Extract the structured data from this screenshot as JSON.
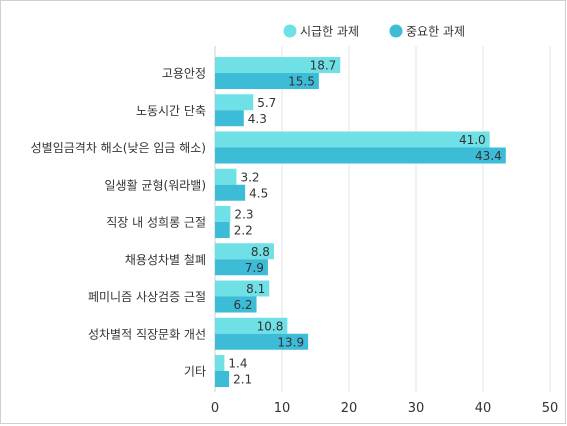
{
  "chart_data": {
    "type": "bar",
    "orientation": "horizontal",
    "categories": [
      "고용안정",
      "노동시간 단축",
      "성별임금격차 해소(낮은 임금 해소)",
      "일생활 균형(워라밸)",
      "직장 내 성희롱 근절",
      "채용성차별 철폐",
      "페미니즘 사상검증 근절",
      "성차별적 직장문화 개선",
      "기타"
    ],
    "series": [
      {
        "name": "시급한 과제",
        "color": "#6fe0e6",
        "values": [
          18.7,
          5.7,
          41.0,
          3.2,
          2.3,
          8.8,
          8.1,
          10.8,
          1.4
        ]
      },
      {
        "name": "중요한 과제",
        "color": "#3dbcd8",
        "values": [
          15.5,
          4.3,
          43.4,
          4.5,
          2.2,
          7.9,
          6.2,
          13.9,
          2.1
        ]
      }
    ],
    "value_labels": [
      [
        "18.7",
        "5.7",
        "41.0",
        "3.2",
        "2.3",
        "8.8",
        "8.1",
        "10.8",
        "1.4"
      ],
      [
        "15.5",
        "4.3",
        "43.4",
        "4.5",
        "2.2",
        "7.9",
        "6.2",
        "13.9",
        "2.1"
      ]
    ],
    "xlim": [
      0,
      50
    ],
    "xticks": [
      0,
      10,
      20,
      30,
      40,
      50
    ],
    "grid": true,
    "legend_position": "top-right",
    "title": "",
    "xlabel": "",
    "ylabel": ""
  }
}
